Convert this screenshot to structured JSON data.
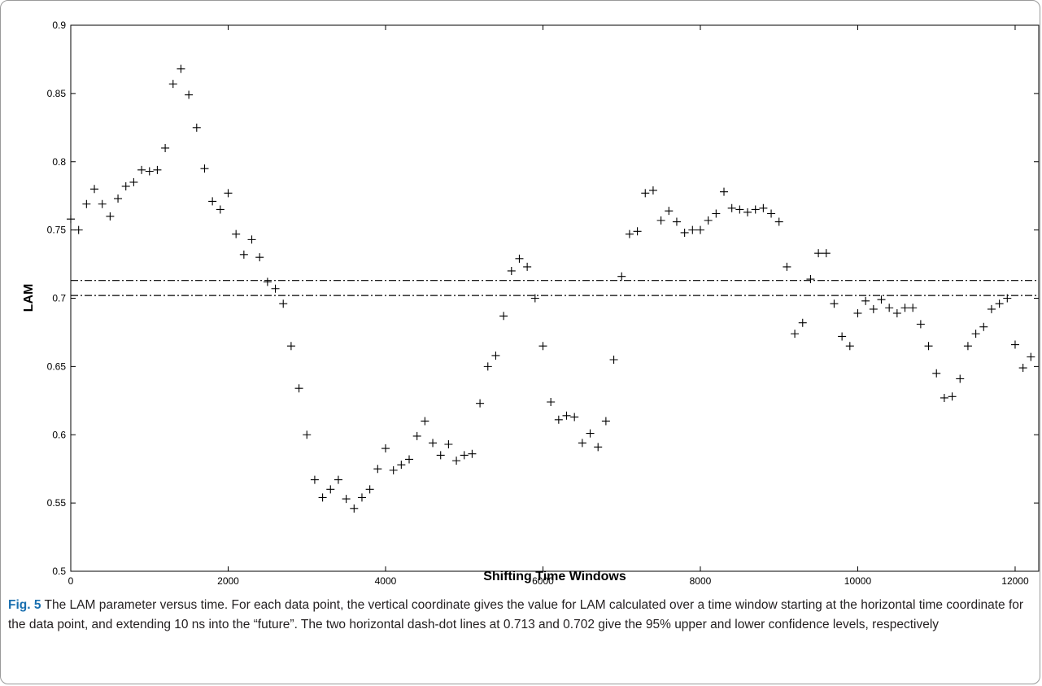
{
  "chart_data": {
    "type": "scatter",
    "xlabel": "Shifting Time Windows",
    "ylabel": "LAM",
    "xlim": [
      0,
      12300
    ],
    "ylim": [
      0.5,
      0.9
    ],
    "xticks": [
      0,
      2000,
      4000,
      6000,
      8000,
      10000,
      12000
    ],
    "xtick_labels": [
      "0",
      "2000",
      "4000",
      "6000",
      "8000",
      "10000",
      "12000"
    ],
    "yticks": [
      0.5,
      0.55,
      0.6,
      0.65,
      0.7,
      0.75,
      0.8,
      0.85,
      0.9
    ],
    "ytick_labels": [
      "0.5",
      "0.55",
      "0.6",
      "0.65",
      "0.7",
      "0.75",
      "0.8",
      "0.85",
      "0.9"
    ],
    "marker": "+",
    "grid": false,
    "reference_lines": [
      {
        "y": 0.713,
        "style": "dash-dot"
      },
      {
        "y": 0.702,
        "style": "dash-dot"
      }
    ],
    "x": [
      0,
      100,
      200,
      300,
      400,
      500,
      600,
      700,
      800,
      900,
      1000,
      1100,
      1200,
      1300,
      1400,
      1500,
      1600,
      1700,
      1800,
      1900,
      2000,
      2100,
      2200,
      2300,
      2400,
      2500,
      2600,
      2700,
      2800,
      2900,
      3000,
      3100,
      3200,
      3300,
      3400,
      3500,
      3600,
      3700,
      3800,
      3900,
      4000,
      4100,
      4200,
      4300,
      4400,
      4500,
      4600,
      4700,
      4800,
      4900,
      5000,
      5100,
      5200,
      5300,
      5400,
      5500,
      5600,
      5700,
      5800,
      5900,
      6000,
      6100,
      6200,
      6300,
      6400,
      6500,
      6600,
      6700,
      6800,
      6900,
      7000,
      7100,
      7200,
      7300,
      7400,
      7500,
      7600,
      7700,
      7800,
      7900,
      8000,
      8100,
      8200,
      8300,
      8400,
      8500,
      8600,
      8700,
      8800,
      8900,
      9000,
      9100,
      9200,
      9300,
      9400,
      9500,
      9600,
      9700,
      9800,
      9900,
      10000,
      10100,
      10200,
      10300,
      10400,
      10500,
      10600,
      10700,
      10800,
      10900,
      11000,
      11100,
      11200,
      11300,
      11400,
      11500,
      11600,
      11700,
      11800,
      11900,
      12000,
      12100,
      12200
    ],
    "y": [
      0.758,
      0.75,
      0.769,
      0.78,
      0.769,
      0.76,
      0.773,
      0.782,
      0.785,
      0.794,
      0.793,
      0.794,
      0.81,
      0.857,
      0.868,
      0.849,
      0.825,
      0.795,
      0.771,
      0.765,
      0.777,
      0.747,
      0.732,
      0.743,
      0.73,
      0.712,
      0.707,
      0.696,
      0.665,
      0.634,
      0.6,
      0.567,
      0.554,
      0.56,
      0.567,
      0.553,
      0.546,
      0.554,
      0.56,
      0.575,
      0.59,
      0.574,
      0.578,
      0.582,
      0.599,
      0.61,
      0.594,
      0.585,
      0.593,
      0.581,
      0.585,
      0.586,
      0.623,
      0.65,
      0.658,
      0.687,
      0.72,
      0.729,
      0.723,
      0.7,
      0.665,
      0.624,
      0.611,
      0.614,
      0.613,
      0.594,
      0.601,
      0.591,
      0.61,
      0.655,
      0.716,
      0.747,
      0.749,
      0.777,
      0.779,
      0.757,
      0.764,
      0.756,
      0.748,
      0.75,
      0.75,
      0.757,
      0.762,
      0.778,
      0.766,
      0.765,
      0.763,
      0.765,
      0.766,
      0.762,
      0.756,
      0.723,
      0.674,
      0.682,
      0.714,
      0.733,
      0.733,
      0.696,
      0.672,
      0.665,
      0.689,
      0.698,
      0.692,
      0.699,
      0.693,
      0.689,
      0.693,
      0.693,
      0.681,
      0.665,
      0.645,
      0.627,
      0.628,
      0.641,
      0.665,
      0.674,
      0.679,
      0.692,
      0.696,
      0.7,
      0.666,
      0.649,
      0.657
    ]
  },
  "caption": {
    "label": "Fig. 5",
    "text": " The LAM parameter versus time. For each data point, the vertical coordinate gives the value for LAM calculated over a time window starting at the horizontal time coordinate for the data point, and extending 10 ns into the “future”. The two horizontal dash-dot lines at 0.713 and 0.702 give the 95% upper and lower confidence levels, respectively"
  }
}
